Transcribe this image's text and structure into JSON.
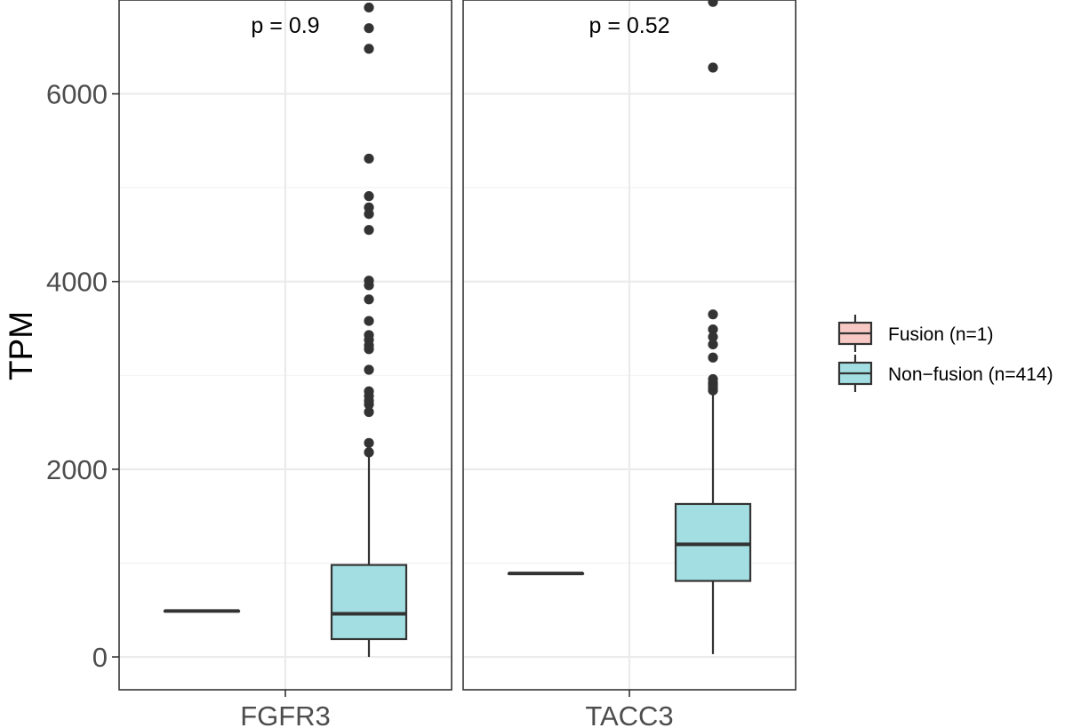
{
  "chart_data": {
    "type": "boxplot",
    "ylabel": "TPM",
    "ylim": [
      -350,
      7000
    ],
    "yticks": [
      0,
      2000,
      4000,
      6000
    ],
    "tick_labels": [
      "0",
      "2000",
      "4000",
      "6000"
    ],
    "grid": true,
    "legend_position": "right",
    "legend": [
      {
        "label": "Fusion (n=1)",
        "color": "#F8C8C4"
      },
      {
        "label": "Non−fusion (n=414)",
        "color": "#A3DFE2"
      }
    ],
    "panels": [
      {
        "name": "FGFR3",
        "pvalue": "p = 0.9",
        "groups": [
          {
            "group": "Fusion (n=1)",
            "min": 490,
            "q1": 490,
            "median": 490,
            "q3": 490,
            "max": 490,
            "outliers": []
          },
          {
            "group": "Non−fusion (n=414)",
            "min": 0,
            "q1": 190,
            "median": 460,
            "q3": 980,
            "max": 2140,
            "outliers": [
              2180,
              2280,
              2610,
              2690,
              2730,
              2780,
              2830,
              3060,
              3280,
              3320,
              3380,
              3430,
              3580,
              3810,
              3960,
              4010,
              4550,
              4720,
              4790,
              4910,
              5310,
              6480,
              6700,
              6920
            ]
          }
        ]
      },
      {
        "name": "TACC3",
        "pvalue": "p = 0.52",
        "groups": [
          {
            "group": "Fusion (n=1)",
            "min": 890,
            "q1": 890,
            "median": 890,
            "q3": 890,
            "max": 890,
            "outliers": []
          },
          {
            "group": "Non−fusion (n=414)",
            "min": 30,
            "q1": 810,
            "median": 1200,
            "q3": 1630,
            "max": 2800,
            "outliers": [
              2840,
              2870,
              2900,
              2920,
              2960,
              3190,
              3330,
              3410,
              3490,
              3650,
              6280,
              6980
            ]
          }
        ]
      }
    ]
  }
}
